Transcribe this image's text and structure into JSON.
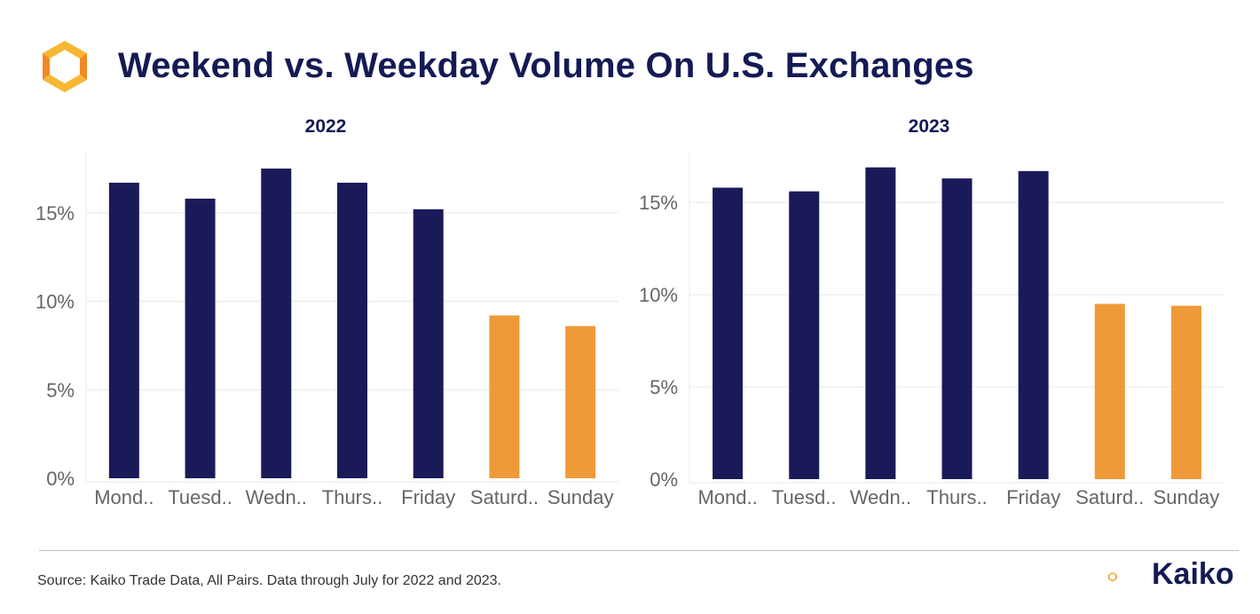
{
  "header": {
    "title": "Weekend vs. Weekday Volume On U.S. Exchanges"
  },
  "colors": {
    "weekday": "#1a1a59",
    "weekend": "#ee9a39",
    "title": "#141a54",
    "grid": "#e8e8e8",
    "tick_text": "#666666",
    "logo_orange": "#f08a24",
    "logo_yellow": "#f7b733"
  },
  "chart_data": [
    {
      "type": "bar",
      "title": "2022",
      "categories": [
        "Mond..",
        "Tuesd..",
        "Wedn..",
        "Thurs..",
        "Friday",
        "Saturd..",
        "Sunday"
      ],
      "values": [
        16.7,
        15.8,
        17.5,
        16.7,
        15.2,
        9.2,
        8.6
      ],
      "is_weekend": [
        false,
        false,
        false,
        false,
        false,
        true,
        true
      ],
      "y_ticks": [
        "0%",
        "5%",
        "10%",
        "15%"
      ],
      "y_tick_values": [
        0,
        5,
        10,
        15
      ],
      "ylim": [
        0,
        18.4
      ],
      "xlabel": "",
      "ylabel": "",
      "grid": true
    },
    {
      "type": "bar",
      "title": "2023",
      "categories": [
        "Mond..",
        "Tuesd..",
        "Wedn..",
        "Thurs..",
        "Friday",
        "Saturd..",
        "Sunday"
      ],
      "values": [
        15.8,
        15.6,
        16.9,
        16.3,
        16.7,
        9.5,
        9.4
      ],
      "is_weekend": [
        false,
        false,
        false,
        false,
        false,
        true,
        true
      ],
      "y_ticks": [
        "0%",
        "5%",
        "10%",
        "15%"
      ],
      "y_tick_values": [
        0,
        5,
        10,
        15
      ],
      "ylim": [
        0,
        17.7
      ],
      "xlabel": "",
      "ylabel": "",
      "grid": true
    }
  ],
  "footer": {
    "source": "Source: Kaiko Trade Data, All Pairs. Data through July for 2022 and 2023.",
    "brand": "Kaiko"
  }
}
